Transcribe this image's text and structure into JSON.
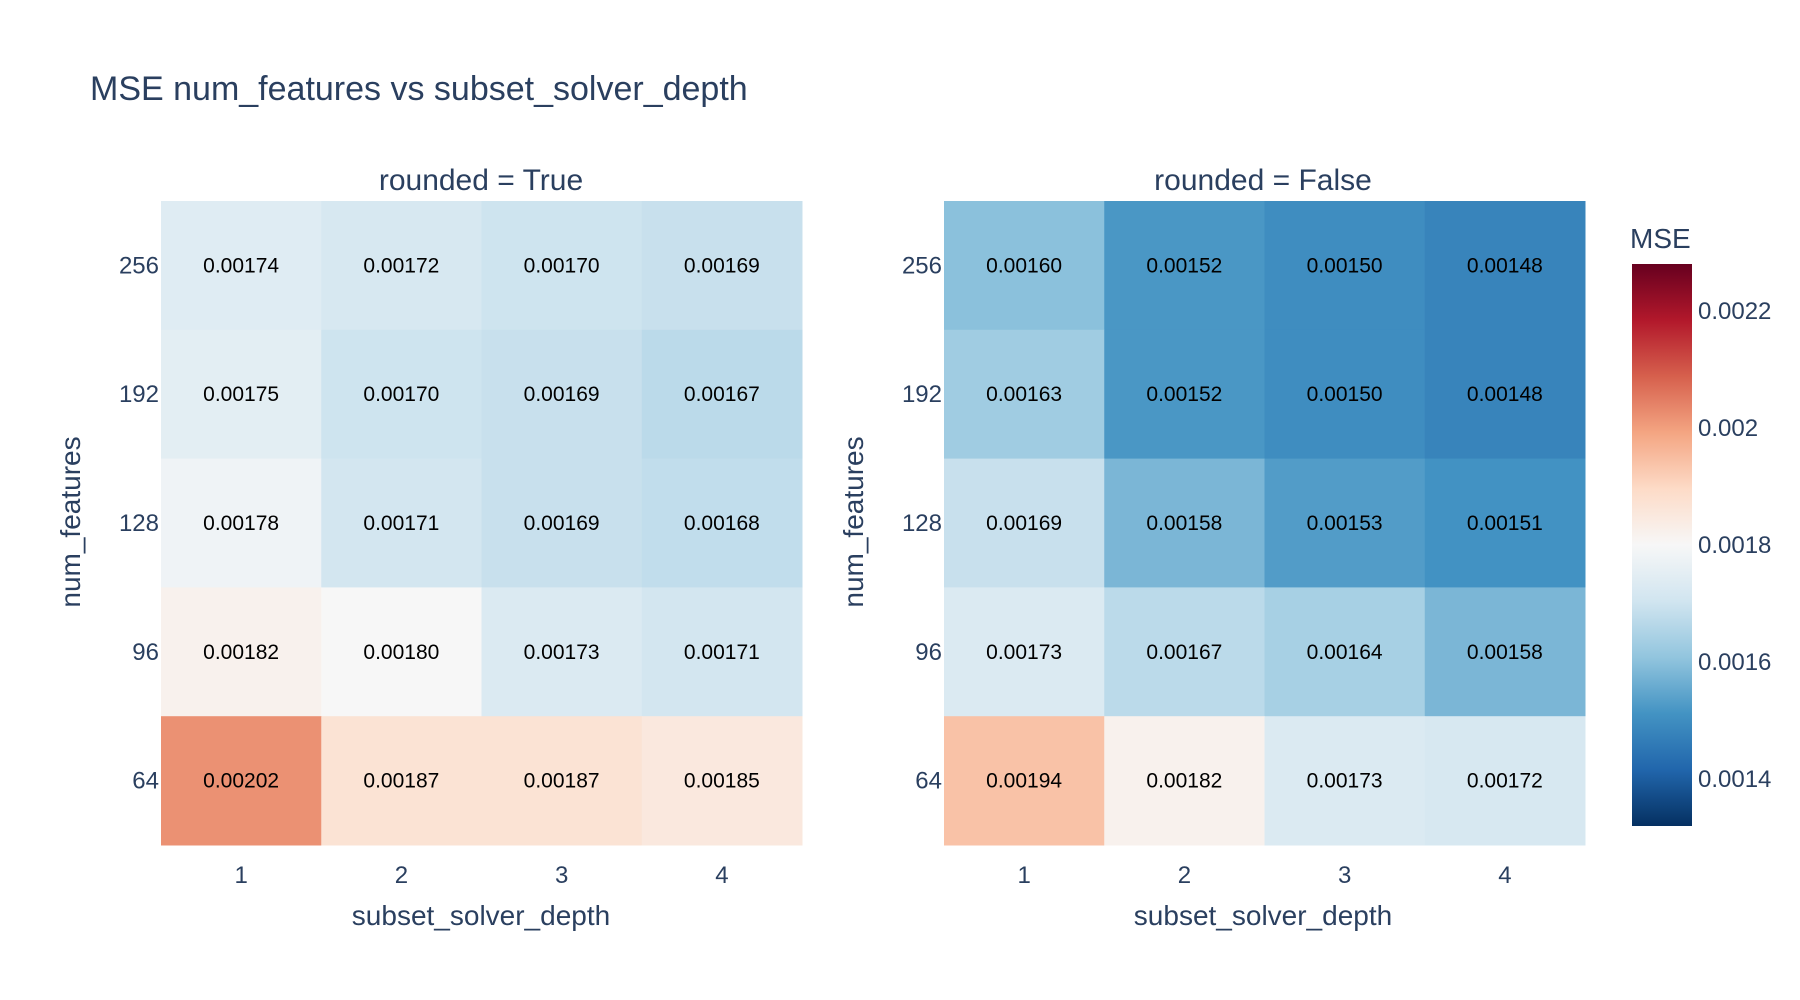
{
  "chart_data": {
    "type": "heatmap",
    "title": "MSE num_features vs subset_solver_depth",
    "colorbar": {
      "title": "MSE",
      "range": [
        0.00132,
        0.00228
      ],
      "ticks": [
        0.0014,
        0.0016,
        0.0018,
        0.002,
        0.0022
      ],
      "tick_labels": [
        "0.0014",
        "0.0016",
        "0.0018",
        "0.002",
        "0.0022"
      ],
      "colorscale": [
        "#053061",
        "#2166ac",
        "#4393c3",
        "#92c5de",
        "#d1e5f0",
        "#f7f7f7",
        "#fddbc7",
        "#f4a582",
        "#d6604d",
        "#b2182b",
        "#67001f"
      ]
    },
    "panels": [
      {
        "title": "rounded = True",
        "xlabel": "subset_solver_depth",
        "ylabel": "num_features",
        "x": [
          "1",
          "2",
          "3",
          "4"
        ],
        "y": [
          "256",
          "192",
          "128",
          "96",
          "64"
        ],
        "z": [
          [
            0.00174,
            0.00172,
            0.0017,
            0.00169
          ],
          [
            0.00175,
            0.0017,
            0.00169,
            0.00167
          ],
          [
            0.00178,
            0.00171,
            0.00169,
            0.00168
          ],
          [
            0.00182,
            0.0018,
            0.00173,
            0.00171
          ],
          [
            0.00202,
            0.00187,
            0.00187,
            0.00185
          ]
        ],
        "text": [
          [
            "0.00174",
            "0.00172",
            "0.00170",
            "0.00169"
          ],
          [
            "0.00175",
            "0.00170",
            "0.00169",
            "0.00167"
          ],
          [
            "0.00178",
            "0.00171",
            "0.00169",
            "0.00168"
          ],
          [
            "0.00182",
            "0.00180",
            "0.00173",
            "0.00171"
          ],
          [
            "0.00202",
            "0.00187",
            "0.00187",
            "0.00185"
          ]
        ]
      },
      {
        "title": "rounded = False",
        "xlabel": "subset_solver_depth",
        "ylabel": "num_features",
        "x": [
          "1",
          "2",
          "3",
          "4"
        ],
        "y": [
          "256",
          "192",
          "128",
          "96",
          "64"
        ],
        "z": [
          [
            0.0016,
            0.00152,
            0.0015,
            0.00148
          ],
          [
            0.00163,
            0.00152,
            0.0015,
            0.00148
          ],
          [
            0.00169,
            0.00158,
            0.00153,
            0.00151
          ],
          [
            0.00173,
            0.00167,
            0.00164,
            0.00158
          ],
          [
            0.00194,
            0.00182,
            0.00173,
            0.00172
          ]
        ],
        "text": [
          [
            "0.00160",
            "0.00152",
            "0.00150",
            "0.00148"
          ],
          [
            "0.00163",
            "0.00152",
            "0.00150",
            "0.00148"
          ],
          [
            "0.00169",
            "0.00158",
            "0.00153",
            "0.00151"
          ],
          [
            "0.00173",
            "0.00167",
            "0.00164",
            "0.00158"
          ],
          [
            "0.00194",
            "0.00182",
            "0.00173",
            "0.00172"
          ]
        ]
      }
    ]
  }
}
